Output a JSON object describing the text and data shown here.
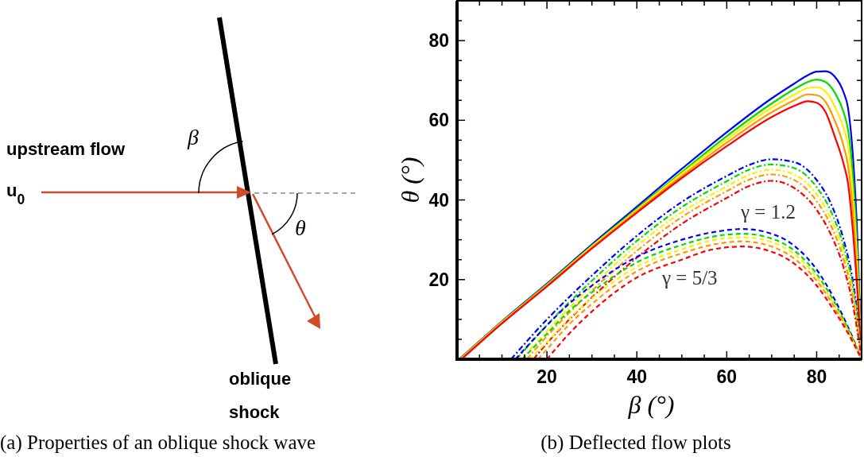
{
  "chart_data": [
    {
      "type": "other",
      "title": "(a) Properties of an oblique shock wave",
      "annotations": [
        "upstream flow",
        "u$_{0}$",
        "β",
        "θ",
        "oblique",
        "shock"
      ]
    },
    {
      "type": "line",
      "title": "(b) Deflected flow plots",
      "xlabel": "β (°)",
      "ylabel": "θ (°)",
      "xlim": [
        0,
        90
      ],
      "ylim": [
        0,
        90
      ],
      "xticks": [
        {
          "value": 5,
          "label": null
        },
        {
          "value": 10,
          "label": null
        },
        {
          "value": 15,
          "label": null
        },
        20,
        {
          "value": 25,
          "label": null
        },
        {
          "value": 30,
          "label": null
        },
        {
          "value": 35,
          "label": null
        },
        40,
        {
          "value": 45,
          "label": null
        },
        {
          "value": 50,
          "label": null
        },
        {
          "value": 55,
          "label": null
        },
        60,
        {
          "value": 65,
          "label": null
        },
        {
          "value": 70,
          "label": null
        },
        {
          "value": 75,
          "label": null
        },
        80,
        {
          "value": 85,
          "label": null
        }
      ],
      "yticks": [
        {
          "value": 5,
          "label": null
        },
        {
          "value": 10,
          "label": null
        },
        {
          "value": 15,
          "label": null
        },
        20,
        {
          "value": 25,
          "label": null
        },
        {
          "value": 30,
          "label": null
        },
        {
          "value": 35,
          "label": null
        },
        40,
        {
          "value": 45,
          "label": null
        },
        {
          "value": 50,
          "label": null
        },
        {
          "value": 55,
          "label": null
        },
        60,
        {
          "value": 65,
          "label": null
        },
        {
          "value": 70,
          "label": null
        },
        {
          "value": 75,
          "label": null
        },
        80,
        {
          "value": 85,
          "label": null
        }
      ],
      "grid": false,
      "marker": "none",
      "annotations": [
        "γ = 1.2",
        "γ = 5/3"
      ],
      "series": [
        {
          "color": "#0000ff",
          "line_style": "solid",
          "x": [
            0.5,
            10,
            20,
            30,
            40,
            50,
            60,
            70,
            75,
            78,
            80,
            82,
            84,
            86,
            87,
            88,
            89,
            90
          ],
          "values": [
            0,
            9.5,
            19,
            28.8,
            38.3,
            47.8,
            57,
            65.5,
            69.2,
            71.3,
            72.2,
            72.3,
            71,
            67,
            63,
            52,
            32,
            0
          ]
        },
        {
          "color": "#00dd00",
          "line_style": "solid",
          "x": [
            0.6,
            10,
            20,
            30,
            40,
            50,
            60,
            70,
            75,
            78,
            80,
            82,
            84,
            86,
            87,
            88,
            89,
            90
          ],
          "values": [
            0,
            9.4,
            18.8,
            28.5,
            37.8,
            47,
            56,
            64.2,
            67.8,
            69.6,
            70.2,
            69.6,
            67,
            62,
            57.5,
            47,
            28,
            0
          ]
        },
        {
          "color": "#ffee00",
          "line_style": "solid",
          "x": [
            0.7,
            10,
            20,
            30,
            40,
            50,
            60,
            70,
            75,
            78,
            80,
            82,
            84,
            86,
            87,
            88,
            89,
            90
          ],
          "values": [
            0,
            9.3,
            18.6,
            28.3,
            37.5,
            46.6,
            55.2,
            63.2,
            66.4,
            68.1,
            68.3,
            67.2,
            63.5,
            58,
            53.5,
            42.5,
            25,
            0
          ]
        },
        {
          "color": "#ff9900",
          "line_style": "solid",
          "x": [
            0.8,
            10,
            20,
            30,
            40,
            50,
            60,
            70,
            75,
            78,
            80,
            82,
            84,
            86,
            87,
            88,
            89,
            90
          ],
          "values": [
            0,
            9.1,
            18.5,
            28,
            37.2,
            46,
            54.4,
            62,
            65,
            66.5,
            66.3,
            64.6,
            60,
            53.5,
            48.5,
            38,
            21.5,
            0
          ]
        },
        {
          "color": "#ff0000",
          "line_style": "solid",
          "x": [
            1,
            10,
            20,
            30,
            40,
            50,
            60,
            70,
            75,
            78,
            80,
            82,
            84,
            86,
            87,
            88,
            89,
            90
          ],
          "values": [
            0,
            9,
            18.3,
            27.8,
            36.8,
            45.5,
            53.5,
            60.8,
            63.6,
            64.8,
            64.4,
            62,
            56,
            49,
            44,
            33,
            18,
            0
          ]
        },
        {
          "color": "#0000ff",
          "line_style": "dashdot",
          "x": [
            12,
            20,
            30,
            40,
            50,
            60,
            65,
            70,
            75,
            80,
            83,
            86,
            88,
            89,
            90
          ],
          "values": [
            0,
            10,
            21,
            31,
            39.5,
            46,
            48.8,
            50.2,
            49.5,
            45,
            39.5,
            30,
            20,
            12,
            0
          ]
        },
        {
          "color": "#00dd00",
          "line_style": "dashdot",
          "x": [
            13.2,
            20,
            30,
            40,
            50,
            60,
            65,
            70,
            75,
            80,
            83,
            86,
            88,
            89,
            90
          ],
          "values": [
            0,
            8.6,
            19.7,
            29.7,
            38.2,
            44.7,
            47.6,
            48.9,
            48,
            43.2,
            37.6,
            28.3,
            18.6,
            10.9,
            0
          ]
        },
        {
          "color": "#ffee00",
          "line_style": "dashdot",
          "x": [
            14.4,
            20,
            30,
            40,
            50,
            60,
            65,
            70,
            75,
            80,
            83,
            86,
            88,
            89,
            90
          ],
          "values": [
            0,
            7.1,
            18.4,
            28.5,
            36.9,
            43.4,
            46.3,
            47.6,
            46.4,
            41.4,
            35.6,
            26.7,
            17.1,
            9.8,
            0
          ]
        },
        {
          "color": "#ff9900",
          "line_style": "dashdot",
          "x": [
            15.5,
            20,
            30,
            40,
            50,
            60,
            65,
            70,
            75,
            80,
            83,
            86,
            88,
            89,
            90
          ],
          "values": [
            0,
            5.8,
            17.2,
            27.2,
            35.7,
            42.2,
            45.1,
            46.4,
            45,
            39.7,
            34,
            25.1,
            15.8,
            8.9,
            0
          ]
        },
        {
          "color": "#ff0000",
          "line_style": "dashdot",
          "x": [
            17,
            20,
            30,
            40,
            50,
            60,
            65,
            70,
            75,
            80,
            83,
            86,
            88,
            89,
            90
          ],
          "values": [
            0,
            4,
            15.5,
            25.5,
            34,
            40.5,
            43.5,
            44.8,
            43,
            37.5,
            31.7,
            23,
            14,
            7.5,
            0
          ]
        },
        {
          "color": "#0000ff",
          "line_style": "dashed",
          "x": [
            13,
            20,
            25,
            30,
            40,
            50,
            57,
            63.5,
            70,
            75,
            80,
            84,
            87,
            90
          ],
          "values": [
            0,
            8.5,
            14,
            18.5,
            25.7,
            30,
            31.9,
            32.7,
            31.5,
            28.5,
            22.5,
            15,
            8,
            0
          ]
        },
        {
          "color": "#00dd00",
          "line_style": "dashed",
          "x": [
            14.5,
            20,
            25,
            30,
            40,
            50,
            57,
            63.5,
            70,
            75,
            80,
            84,
            87,
            90
          ],
          "values": [
            0,
            6.4,
            12.2,
            16.8,
            24.3,
            28.7,
            30.8,
            31.5,
            30.3,
            27.3,
            21.4,
            14.2,
            7.6,
            0
          ]
        },
        {
          "color": "#ffee00",
          "line_style": "dashed",
          "x": [
            16,
            20,
            25,
            30,
            40,
            50,
            57,
            63.5,
            70,
            75,
            80,
            84,
            87,
            90
          ],
          "values": [
            0,
            4.3,
            10.3,
            15.3,
            23.2,
            27.6,
            29.9,
            30.6,
            29.4,
            26.4,
            20.6,
            13.6,
            7.3,
            0
          ]
        },
        {
          "color": "#ff9900",
          "line_style": "dashed",
          "x": [
            18,
            20,
            25,
            30,
            40,
            50,
            57,
            63.5,
            70,
            75,
            80,
            84,
            87,
            90
          ],
          "values": [
            0,
            2.5,
            8.8,
            13.9,
            22.1,
            26.6,
            28.8,
            29.6,
            28.3,
            25.3,
            19.7,
            13,
            6.9,
            0
          ]
        },
        {
          "color": "#ff0000",
          "line_style": "dashed",
          "x": [
            20,
            25,
            30,
            40,
            50,
            57,
            63.5,
            70,
            75,
            80,
            84,
            87,
            90
          ],
          "values": [
            0,
            6.5,
            12,
            20.5,
            25,
            27.6,
            28.3,
            27,
            24,
            18.5,
            12,
            6.5,
            0
          ]
        }
      ]
    }
  ]
}
